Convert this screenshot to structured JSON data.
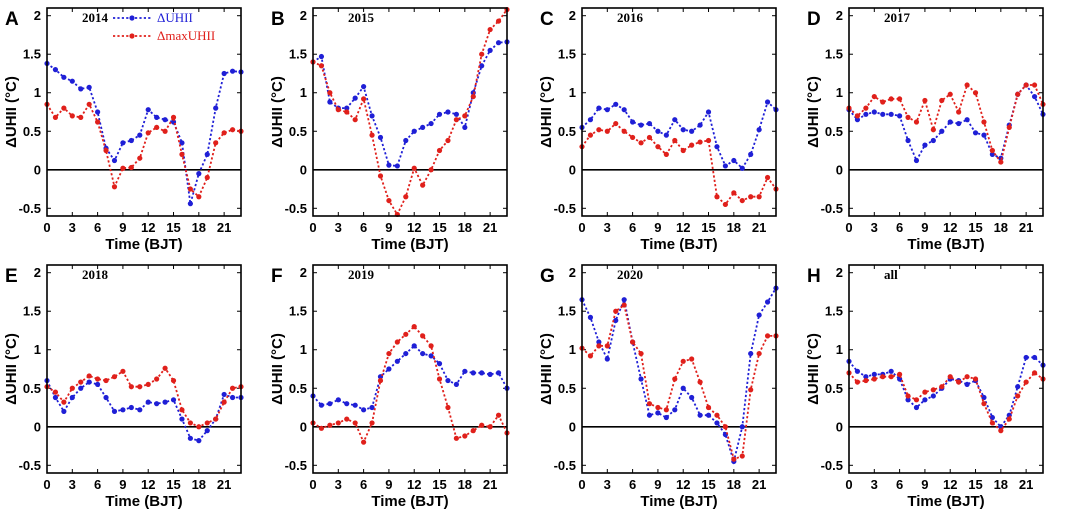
{
  "chart_data": [
    {
      "type": "line",
      "panel": "A",
      "title": "2014",
      "xlabel": "Time (BJT)",
      "ylabel": "ΔUHII (°C)",
      "xlim": [
        0,
        23
      ],
      "ylim": [
        -0.6,
        2.1
      ],
      "xticks": [
        0,
        3,
        6,
        9,
        12,
        15,
        18,
        21
      ],
      "yticks": [
        -0.5,
        0,
        0.5,
        1,
        1.5,
        2
      ],
      "legend": [
        "ΔUHII",
        "ΔmaxUHII"
      ],
      "series": [
        {
          "name": "ΔUHII",
          "color": "#1f1fd6",
          "values": [
            1.38,
            1.3,
            1.2,
            1.15,
            1.05,
            1.07,
            0.75,
            0.28,
            0.12,
            0.35,
            0.38,
            0.45,
            0.78,
            0.68,
            0.65,
            0.62,
            0.35,
            -0.44,
            -0.05,
            0.2,
            0.8,
            1.25,
            1.28,
            1.27
          ]
        },
        {
          "name": "ΔmaxUHII",
          "color": "#e0201b",
          "values": [
            0.85,
            0.68,
            0.8,
            0.7,
            0.68,
            0.85,
            0.62,
            0.25,
            -0.22,
            0.02,
            0.03,
            0.15,
            0.48,
            0.55,
            0.5,
            0.68,
            0.2,
            -0.25,
            -0.35,
            -0.1,
            0.35,
            0.48,
            0.52,
            0.5
          ]
        }
      ]
    },
    {
      "type": "line",
      "panel": "B",
      "title": "2015",
      "xlabel": "Time (BJT)",
      "ylabel": "",
      "xlim": [
        0,
        23
      ],
      "ylim": [
        -0.6,
        2.1
      ],
      "xticks": [
        0,
        3,
        6,
        9,
        12,
        15,
        18,
        21
      ],
      "yticks": [
        -0.5,
        0,
        0.5,
        1,
        1.5,
        2
      ],
      "series": [
        {
          "name": "ΔUHII",
          "color": "#1f1fd6",
          "values": [
            1.4,
            1.47,
            0.88,
            0.8,
            0.8,
            0.93,
            1.08,
            0.7,
            0.42,
            0.06,
            0.05,
            0.38,
            0.5,
            0.55,
            0.6,
            0.72,
            0.75,
            0.72,
            0.55,
            1.0,
            1.35,
            1.55,
            1.65,
            1.66
          ]
        },
        {
          "name": "ΔmaxUHII",
          "color": "#e0201b",
          "values": [
            1.4,
            1.35,
            1.0,
            0.78,
            0.75,
            0.65,
            0.92,
            0.45,
            -0.08,
            -0.4,
            -0.58,
            -0.35,
            0.02,
            -0.2,
            0.0,
            0.25,
            0.38,
            0.65,
            0.7,
            0.95,
            1.5,
            1.82,
            1.93,
            2.08
          ]
        }
      ]
    },
    {
      "type": "line",
      "panel": "C",
      "title": "2016",
      "xlabel": "Time (BJT)",
      "ylabel": "",
      "xlim": [
        0,
        23
      ],
      "ylim": [
        -0.6,
        2.1
      ],
      "xticks": [
        0,
        3,
        6,
        9,
        12,
        15,
        18,
        21
      ],
      "yticks": [
        -0.5,
        0,
        0.5,
        1,
        1.5,
        2
      ],
      "series": [
        {
          "name": "ΔUHII",
          "color": "#1f1fd6",
          "values": [
            0.55,
            0.65,
            0.8,
            0.78,
            0.85,
            0.78,
            0.62,
            0.58,
            0.6,
            0.5,
            0.45,
            0.65,
            0.52,
            0.5,
            0.58,
            0.75,
            0.3,
            0.05,
            0.12,
            0.02,
            0.2,
            0.52,
            0.88,
            0.78
          ]
        },
        {
          "name": "ΔmaxUHII",
          "color": "#e0201b",
          "values": [
            0.3,
            0.45,
            0.52,
            0.5,
            0.6,
            0.5,
            0.42,
            0.35,
            0.42,
            0.3,
            0.2,
            0.38,
            0.25,
            0.32,
            0.36,
            0.38,
            -0.35,
            -0.45,
            -0.3,
            -0.4,
            -0.35,
            -0.35,
            -0.1,
            -0.25
          ]
        }
      ]
    },
    {
      "type": "line",
      "panel": "D",
      "title": "2017",
      "xlabel": "Time (BJT)",
      "ylabel": "",
      "xlim": [
        0,
        23
      ],
      "ylim": [
        -0.6,
        2.1
      ],
      "xticks": [
        0,
        3,
        6,
        9,
        12,
        15,
        18,
        21
      ],
      "yticks": [
        -0.5,
        0,
        0.5,
        1,
        1.5,
        2
      ],
      "series": [
        {
          "name": "ΔUHII",
          "color": "#1f1fd6",
          "values": [
            0.78,
            0.65,
            0.72,
            0.75,
            0.72,
            0.72,
            0.7,
            0.38,
            0.12,
            0.32,
            0.38,
            0.5,
            0.62,
            0.6,
            0.65,
            0.48,
            0.45,
            0.2,
            0.15,
            0.58,
            0.98,
            1.1,
            0.95,
            0.72
          ]
        },
        {
          "name": "ΔmaxUHII",
          "color": "#e0201b",
          "values": [
            0.8,
            0.7,
            0.8,
            0.95,
            0.88,
            0.92,
            0.92,
            0.68,
            0.62,
            0.9,
            0.52,
            0.9,
            0.98,
            0.75,
            1.1,
            1.0,
            0.62,
            0.25,
            0.1,
            0.55,
            0.98,
            1.1,
            1.1,
            0.85
          ]
        }
      ]
    },
    {
      "type": "line",
      "panel": "E",
      "title": "2018",
      "xlabel": "Time (BJT)",
      "ylabel": "ΔUHII (°C)",
      "xlim": [
        0,
        23
      ],
      "ylim": [
        -0.6,
        2.1
      ],
      "xticks": [
        0,
        3,
        6,
        9,
        12,
        15,
        18,
        21
      ],
      "yticks": [
        -0.5,
        0,
        0.5,
        1,
        1.5,
        2
      ],
      "series": [
        {
          "name": "ΔUHII",
          "color": "#1f1fd6",
          "values": [
            0.6,
            0.38,
            0.2,
            0.38,
            0.5,
            0.58,
            0.55,
            0.38,
            0.2,
            0.22,
            0.25,
            0.22,
            0.32,
            0.3,
            0.32,
            0.35,
            0.1,
            -0.15,
            -0.18,
            -0.05,
            0.1,
            0.42,
            0.38,
            0.38
          ]
        },
        {
          "name": "ΔmaxUHII",
          "color": "#e0201b",
          "values": [
            0.52,
            0.45,
            0.32,
            0.5,
            0.58,
            0.66,
            0.62,
            0.6,
            0.65,
            0.72,
            0.52,
            0.52,
            0.55,
            0.62,
            0.76,
            0.6,
            0.22,
            0.05,
            0.0,
            0.05,
            0.1,
            0.32,
            0.5,
            0.52
          ]
        }
      ]
    },
    {
      "type": "line",
      "panel": "F",
      "title": "2019",
      "xlabel": "Time (BJT)",
      "ylabel": "",
      "xlim": [
        0,
        23
      ],
      "ylim": [
        -0.6,
        2.1
      ],
      "xticks": [
        0,
        3,
        6,
        9,
        12,
        15,
        18,
        21
      ],
      "yticks": [
        -0.5,
        0,
        0.5,
        1,
        1.5,
        2
      ],
      "series": [
        {
          "name": "ΔUHII",
          "color": "#1f1fd6",
          "values": [
            0.4,
            0.28,
            0.3,
            0.35,
            0.3,
            0.28,
            0.22,
            0.25,
            0.65,
            0.75,
            0.85,
            0.95,
            1.05,
            0.95,
            0.92,
            0.82,
            0.6,
            0.55,
            0.72,
            0.7,
            0.7,
            0.68,
            0.7,
            0.5
          ]
        },
        {
          "name": "ΔmaxUHII",
          "color": "#e0201b",
          "values": [
            0.05,
            -0.02,
            0.02,
            0.05,
            0.1,
            0.05,
            -0.2,
            0.05,
            0.6,
            0.95,
            1.1,
            1.2,
            1.3,
            1.18,
            1.05,
            0.62,
            0.25,
            -0.15,
            -0.12,
            -0.05,
            0.02,
            0.0,
            0.15,
            -0.08
          ]
        }
      ]
    },
    {
      "type": "line",
      "panel": "G",
      "title": "2020",
      "xlabel": "Time (BJT)",
      "ylabel": "",
      "xlim": [
        0,
        23
      ],
      "ylim": [
        -0.6,
        2.1
      ],
      "xticks": [
        0,
        3,
        6,
        9,
        12,
        15,
        18,
        21
      ],
      "yticks": [
        -0.5,
        0,
        0.5,
        1,
        1.5,
        2
      ],
      "series": [
        {
          "name": "ΔUHII",
          "color": "#1f1fd6",
          "values": [
            1.65,
            1.42,
            1.1,
            0.88,
            1.38,
            1.65,
            1.1,
            0.62,
            0.15,
            0.18,
            0.12,
            0.22,
            0.5,
            0.38,
            0.15,
            0.15,
            0.05,
            -0.1,
            -0.45,
            0.0,
            0.95,
            1.45,
            1.62,
            1.8
          ]
        },
        {
          "name": "ΔmaxUHII",
          "color": "#e0201b",
          "values": [
            1.02,
            0.92,
            1.05,
            1.05,
            1.5,
            1.58,
            1.1,
            0.95,
            0.3,
            0.25,
            0.22,
            0.62,
            0.85,
            0.88,
            0.58,
            0.25,
            0.15,
            0.0,
            -0.42,
            -0.38,
            0.48,
            0.95,
            1.18,
            1.18
          ]
        }
      ]
    },
    {
      "type": "line",
      "panel": "H",
      "title": "all",
      "xlabel": "Time (BJT)",
      "ylabel": "",
      "xlim": [
        0,
        23
      ],
      "ylim": [
        -0.6,
        2.1
      ],
      "xticks": [
        0,
        3,
        6,
        9,
        12,
        15,
        18,
        21
      ],
      "yticks": [
        -0.5,
        0,
        0.5,
        1,
        1.5,
        2
      ],
      "series": [
        {
          "name": "ΔUHII",
          "color": "#1f1fd6",
          "values": [
            0.85,
            0.72,
            0.65,
            0.68,
            0.68,
            0.72,
            0.62,
            0.35,
            0.25,
            0.35,
            0.4,
            0.5,
            0.62,
            0.6,
            0.55,
            0.6,
            0.38,
            0.12,
            0.0,
            0.15,
            0.52,
            0.9,
            0.9,
            0.8
          ]
        },
        {
          "name": "ΔmaxUHII",
          "color": "#e0201b",
          "values": [
            0.7,
            0.58,
            0.6,
            0.62,
            0.65,
            0.65,
            0.68,
            0.4,
            0.35,
            0.45,
            0.48,
            0.52,
            0.65,
            0.58,
            0.65,
            0.62,
            0.3,
            0.05,
            -0.05,
            0.1,
            0.4,
            0.58,
            0.7,
            0.62
          ]
        }
      ]
    }
  ]
}
